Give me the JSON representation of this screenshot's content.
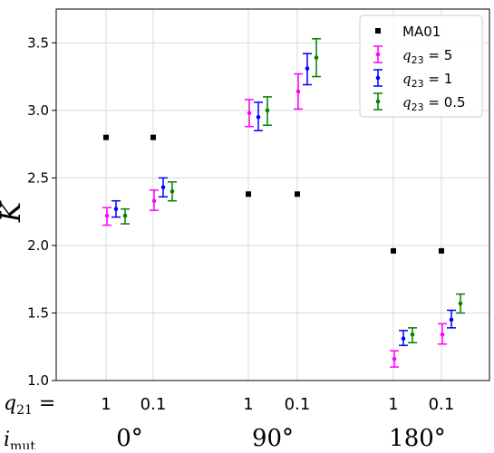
{
  "chart_data": {
    "type": "scatter",
    "ylabel": "K",
    "ylim": [
      1.0,
      3.75
    ],
    "yticks": [
      1.0,
      1.5,
      2.0,
      2.5,
      3.0,
      3.5
    ],
    "ytick_labels": [
      "1.0",
      "1.5",
      "2.0",
      "2.5",
      "3.0",
      "3.5"
    ],
    "grid": true,
    "legend_position": "top-right",
    "row_labels": [
      {
        "prefix": "q",
        "sub": "21",
        "suffix": " ="
      },
      {
        "prefix": "i",
        "sub": "mut",
        "suffix": ""
      }
    ],
    "groups": [
      {
        "label": "0°",
        "q21_labels": [
          "1",
          "0.1"
        ],
        "q21_values": [
          1,
          0.1
        ]
      },
      {
        "label": "90°",
        "q21_labels": [
          "1",
          "0.1"
        ],
        "q21_values": [
          1,
          0.1
        ]
      },
      {
        "label": "180°",
        "q21_labels": [
          "1",
          "0.1"
        ],
        "q21_values": [
          1,
          0.1
        ]
      }
    ],
    "reference": {
      "name": "MA01",
      "color": "#000000",
      "marker": "square",
      "values": [
        2.8,
        2.8,
        2.38,
        2.38,
        1.96,
        1.96
      ]
    },
    "series": [
      {
        "name": "q23 = 5",
        "legend": {
          "prefix": "q",
          "sub": "23",
          "suffix": " = 5"
        },
        "color": "#ff00ff",
        "values": [
          2.22,
          2.33,
          2.98,
          3.14,
          1.16,
          1.34
        ],
        "err_low": [
          2.15,
          2.26,
          2.88,
          3.01,
          1.1,
          1.27
        ],
        "err_high": [
          2.28,
          2.41,
          3.08,
          3.27,
          1.22,
          1.42
        ]
      },
      {
        "name": "q23 = 1",
        "legend": {
          "prefix": "q",
          "sub": "23",
          "suffix": " = 1"
        },
        "color": "#0000ff",
        "values": [
          2.27,
          2.43,
          2.95,
          3.31,
          1.31,
          1.45
        ],
        "err_low": [
          2.21,
          2.36,
          2.85,
          3.19,
          1.26,
          1.39
        ],
        "err_high": [
          2.33,
          2.5,
          3.06,
          3.42,
          1.37,
          1.52
        ]
      },
      {
        "name": "q23 = 0.5",
        "legend": {
          "prefix": "q",
          "sub": "23",
          "suffix": " = 0.5"
        },
        "color": "#008000",
        "values": [
          2.22,
          2.4,
          3.0,
          3.39,
          1.34,
          1.57
        ],
        "err_low": [
          2.16,
          2.33,
          2.89,
          3.25,
          1.28,
          1.5
        ],
        "err_high": [
          2.27,
          2.47,
          3.1,
          3.53,
          1.39,
          1.64
        ]
      }
    ]
  }
}
